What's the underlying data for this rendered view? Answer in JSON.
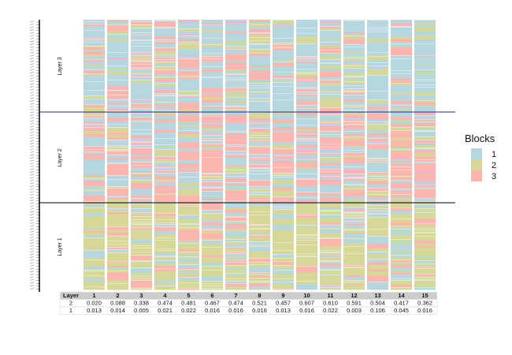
{
  "chart_data": {
    "type": "heatmap",
    "columns": [
      "1",
      "2",
      "3",
      "4",
      "5",
      "6",
      "7",
      "8",
      "9",
      "10",
      "11",
      "12",
      "13",
      "14",
      "15"
    ],
    "row_groups": [
      "Layer 1",
      "Layer 2",
      "Layer 3"
    ],
    "legend": {
      "title": "Blocks",
      "position": "right",
      "entries": [
        {
          "label": "1",
          "color": "#b6d7df"
        },
        {
          "label": "2",
          "color": "#d6d897"
        },
        {
          "label": "3",
          "color": "#fdb5b0"
        }
      ]
    },
    "table": {
      "header": "Layer",
      "rows": [
        {
          "layer": "2",
          "values": [
            "0.020",
            "0.088",
            "0.338",
            "0.474",
            "0.481",
            "0.467",
            "0.474",
            "0.521",
            "0.457",
            "0.607",
            "0.610",
            "0.591",
            "0.504",
            "0.417",
            "0.362"
          ]
        },
        {
          "layer": "1",
          "values": [
            "0.013",
            "0.014",
            "0.005",
            "0.021",
            "0.022",
            "0.016",
            "0.016",
            "0.016",
            "0.013",
            "0.016",
            "0.022",
            "0.003",
            "0.106",
            "0.045",
            "0.016"
          ]
        }
      ]
    },
    "block_colors": [
      "#b6d7df",
      "#d6d897",
      "#fdb5b0"
    ],
    "divider_color": "#1f2a8c"
  }
}
